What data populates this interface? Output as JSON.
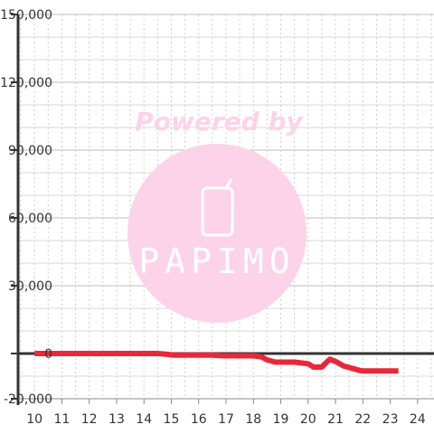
{
  "chart_data": {
    "type": "line",
    "x": [
      10,
      10.5,
      11,
      11.5,
      12,
      12.5,
      13,
      13.5,
      14,
      14.5,
      14.9,
      15.1,
      15.5,
      16,
      16.5,
      16.9,
      17.2,
      17.6,
      18,
      18.3,
      18.5,
      18.8,
      19,
      19.5,
      20,
      20.2,
      20.5,
      20.7,
      20.8,
      21,
      21.3,
      21.6,
      21.9,
      22,
      22.5,
      23,
      23.3
    ],
    "series": [
      {
        "name": "",
        "color": "#e8283a",
        "values": [
          0,
          0,
          0,
          0,
          0,
          0,
          0,
          0,
          0,
          0,
          -400,
          -700,
          -700,
          -700,
          -700,
          -1000,
          -1000,
          -1000,
          -1000,
          -1500,
          -2800,
          -3800,
          -3800,
          -3800,
          -4500,
          -6000,
          -6000,
          -3500,
          -2500,
          -3500,
          -5500,
          -6500,
          -7500,
          -7700,
          -7700,
          -7700,
          -7700
        ]
      }
    ],
    "x_ticks": [
      "10",
      "11",
      "12",
      "13",
      "14",
      "15",
      "16",
      "17",
      "18",
      "19",
      "20",
      "21",
      "22",
      "23",
      "24"
    ],
    "y_ticks": [
      "150,000",
      "120,000",
      "90,000",
      "60,000",
      "30,000",
      "0",
      "-20,000"
    ],
    "y_tick_values": [
      150000,
      120000,
      90000,
      60000,
      30000,
      0,
      -20000
    ],
    "xlim": [
      9.4,
      24.6
    ],
    "ylim": [
      -20000,
      150000
    ],
    "title": "",
    "xlabel": "",
    "ylabel": "",
    "grid": true,
    "legend": "none"
  },
  "watermark": {
    "caption": "Powered by",
    "logo": "PAPIMO",
    "color": "#fcd3e8"
  }
}
